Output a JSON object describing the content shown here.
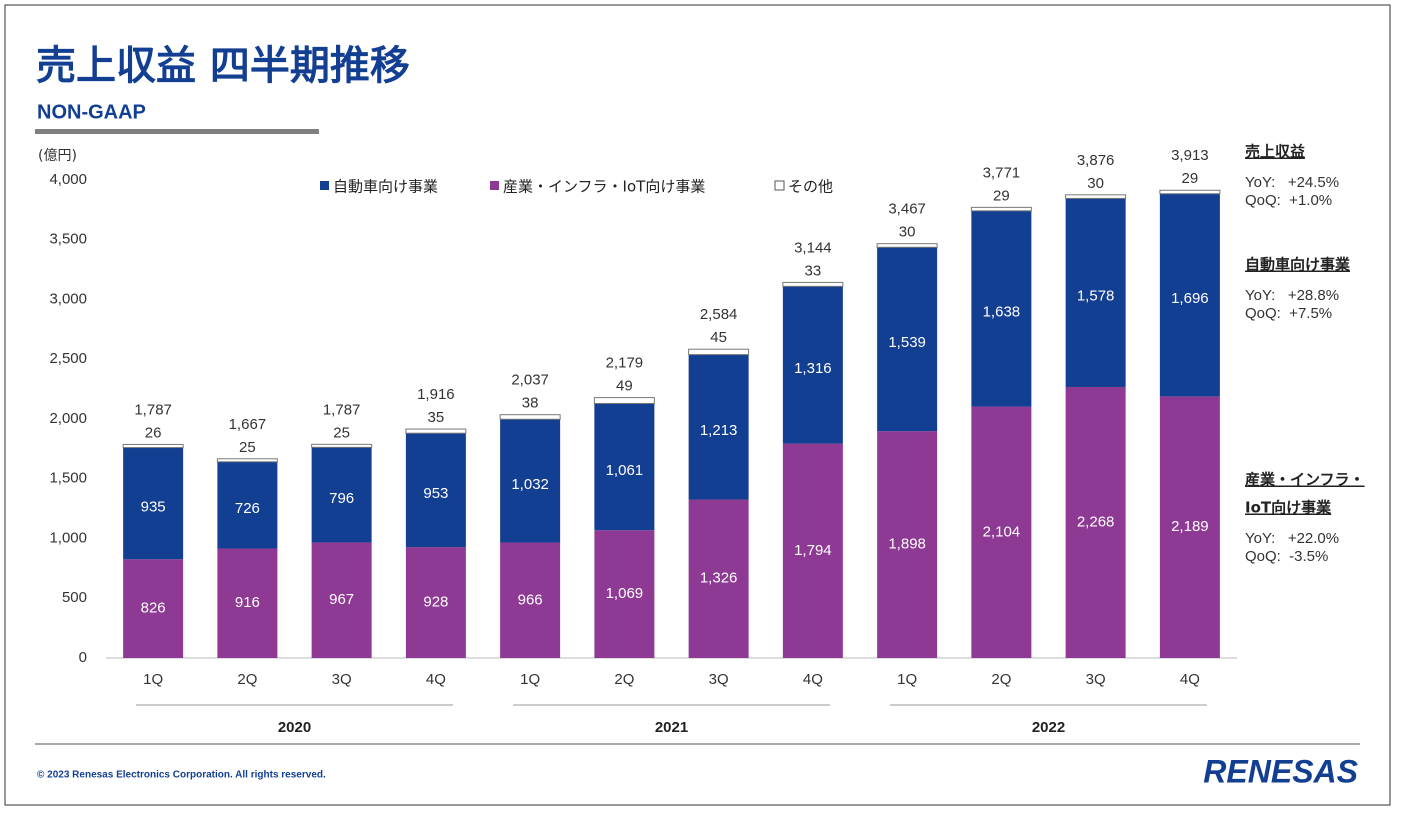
{
  "header": {
    "title": "売上収益 四半期推移",
    "subtitle": "NON-GAAP"
  },
  "chart_data": {
    "type": "stacked-bar",
    "ylabel": "(億円)",
    "categories": [
      "1Q",
      "2Q",
      "3Q",
      "4Q",
      "1Q",
      "2Q",
      "3Q",
      "4Q",
      "1Q",
      "2Q",
      "3Q",
      "4Q"
    ],
    "groups": [
      "2020",
      "2021",
      "2022"
    ],
    "ylim": [
      0,
      4000
    ],
    "yticks": [
      0,
      500,
      {
        "value": 1000,
        "label": "1,000"
      },
      {
        "value": 1500,
        "label": "1,500"
      },
      {
        "value": 2000,
        "label": "2,000"
      },
      {
        "value": 2500,
        "label": "2,500"
      },
      {
        "value": 3000,
        "label": "3,000"
      },
      {
        "value": 3500,
        "label": "3,500"
      },
      {
        "value": 4000,
        "label": "4,000"
      }
    ],
    "series": [
      {
        "name": "自動車向け事業",
        "color": "#133f93",
        "values": [
          935,
          726,
          796,
          953,
          1032,
          1061,
          1213,
          1316,
          1539,
          1638,
          1578,
          1696
        ],
        "value_labels": [
          "935",
          "726",
          "796",
          "953",
          "1,032",
          "1,061",
          "1,213",
          "1,316",
          "1,539",
          "1,638",
          "1,578",
          "1,696"
        ]
      },
      {
        "name": "産業・インフラ・IoT向け事業",
        "color": "#8e3a94",
        "values": [
          826,
          916,
          967,
          928,
          966,
          1069,
          1326,
          1794,
          1898,
          2104,
          2268,
          2189
        ],
        "value_labels": [
          "826",
          "916",
          "967",
          "928",
          "966",
          "1,069",
          "1,326",
          "1,794",
          "1,898",
          "2,104",
          "2,268",
          "2,189"
        ]
      },
      {
        "name": "その他",
        "color": "#ffffff",
        "values": [
          26,
          25,
          25,
          35,
          38,
          49,
          45,
          33,
          30,
          29,
          30,
          29
        ]
      }
    ],
    "totals": {
      "values": [
        1787,
        1667,
        1787,
        1916,
        2037,
        2179,
        2584,
        3144,
        3467,
        3771,
        3876,
        3913
      ],
      "value_labels": [
        "1,787",
        "1,667",
        "1,787",
        "1,916",
        "2,037",
        "2,179",
        "2,584",
        "3,144",
        "3,467",
        "3,771",
        "3,876",
        "3,913"
      ]
    }
  },
  "notes": [
    {
      "title": [
        "売上収益"
      ],
      "lines": [
        "YoY:   +24.5%",
        "QoQ:  +1.0%"
      ]
    },
    {
      "title": [
        "自動車向け事業"
      ],
      "lines": [
        "YoY:   +28.8%",
        "QoQ:  +7.5%"
      ]
    },
    {
      "title": [
        "産業・インフラ・",
        "IoT向け事業"
      ],
      "lines": [
        "YoY:   +22.0%",
        "QoQ:  -3.5%"
      ]
    }
  ],
  "footer": {
    "copyright": "© 2023 Renesas Electronics Corporation. All rights reserved.",
    "logo": "RENESAS"
  }
}
